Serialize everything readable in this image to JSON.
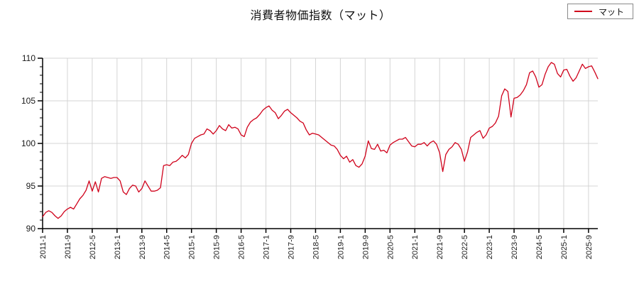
{
  "title": "消費者物価指数（マット）",
  "legend": {
    "label": "マット"
  },
  "colors": {
    "series": "#d0021b",
    "grid": "#d4d4d4",
    "axis": "#000000",
    "text": "#1a1a1a"
  },
  "chart_data": {
    "type": "line",
    "title": "消費者物価指数（マット）",
    "series_name": "マット",
    "frequency": "monthly",
    "x_start": "2011-1",
    "x_end": "2025-12",
    "ylim": [
      90,
      110
    ],
    "y_ticks": [
      90,
      95,
      100,
      105,
      110
    ],
    "y_minor_step": 1,
    "grid": true,
    "legend_position": "top-right",
    "x_tick_every_months": 8,
    "x_tick_labels": [
      "2011-1",
      "2011-9",
      "2012-5",
      "2013-1",
      "2013-9",
      "2014-5",
      "2015-1",
      "2015-9",
      "2016-5",
      "2017-1",
      "2017-9",
      "2018-5",
      "2019-1",
      "2019-9",
      "2020-5",
      "2021-1",
      "2021-9",
      "2022-5",
      "2023-1",
      "2023-9",
      "2024-5",
      "2025-1",
      "2025-9"
    ],
    "values": [
      91.4,
      91.9,
      92.1,
      91.9,
      91.5,
      91.2,
      91.5,
      92.0,
      92.3,
      92.5,
      92.3,
      92.9,
      93.5,
      93.9,
      94.5,
      95.6,
      94.4,
      95.5,
      94.3,
      95.9,
      96.1,
      96.0,
      95.9,
      96.0,
      96.0,
      95.6,
      94.3,
      94.0,
      94.7,
      95.1,
      95.0,
      94.3,
      94.7,
      95.6,
      95.0,
      94.4,
      94.4,
      94.5,
      94.8,
      97.4,
      97.5,
      97.4,
      97.8,
      97.9,
      98.2,
      98.6,
      98.3,
      98.7,
      100.0,
      100.6,
      100.8,
      101.0,
      101.1,
      101.7,
      101.5,
      101.1,
      101.5,
      102.1,
      101.7,
      101.5,
      102.2,
      101.8,
      101.9,
      101.7,
      101.0,
      100.8,
      101.9,
      102.5,
      102.8,
      103.0,
      103.4,
      103.9,
      104.2,
      104.4,
      103.9,
      103.6,
      102.9,
      103.3,
      103.8,
      104.0,
      103.6,
      103.3,
      103.0,
      102.6,
      102.4,
      101.6,
      101.0,
      101.2,
      101.1,
      101.0,
      100.7,
      100.4,
      100.1,
      99.8,
      99.7,
      99.3,
      98.6,
      98.2,
      98.5,
      97.8,
      98.1,
      97.4,
      97.2,
      97.6,
      98.5,
      100.3,
      99.4,
      99.3,
      99.9,
      99.1,
      99.2,
      98.9,
      99.8,
      100.1,
      100.3,
      100.5,
      100.5,
      100.7,
      100.2,
      99.7,
      99.6,
      99.9,
      99.9,
      100.1,
      99.7,
      100.1,
      100.3,
      99.9,
      98.9,
      96.7,
      98.7,
      99.3,
      99.6,
      100.1,
      99.9,
      99.3,
      97.9,
      99.0,
      100.7,
      101.0,
      101.3,
      101.5,
      100.6,
      101.0,
      101.8,
      102.0,
      102.4,
      103.2,
      105.6,
      106.4,
      106.1,
      103.1,
      105.3,
      105.4,
      105.7,
      106.2,
      106.9,
      108.3,
      108.5,
      107.8,
      106.6,
      106.9,
      108.1,
      109.0,
      109.5,
      109.3,
      108.2,
      107.8,
      108.6,
      108.7,
      107.9,
      107.3,
      107.7,
      108.5,
      109.3,
      108.8,
      109.0,
      109.1,
      108.4,
      107.6
    ]
  }
}
